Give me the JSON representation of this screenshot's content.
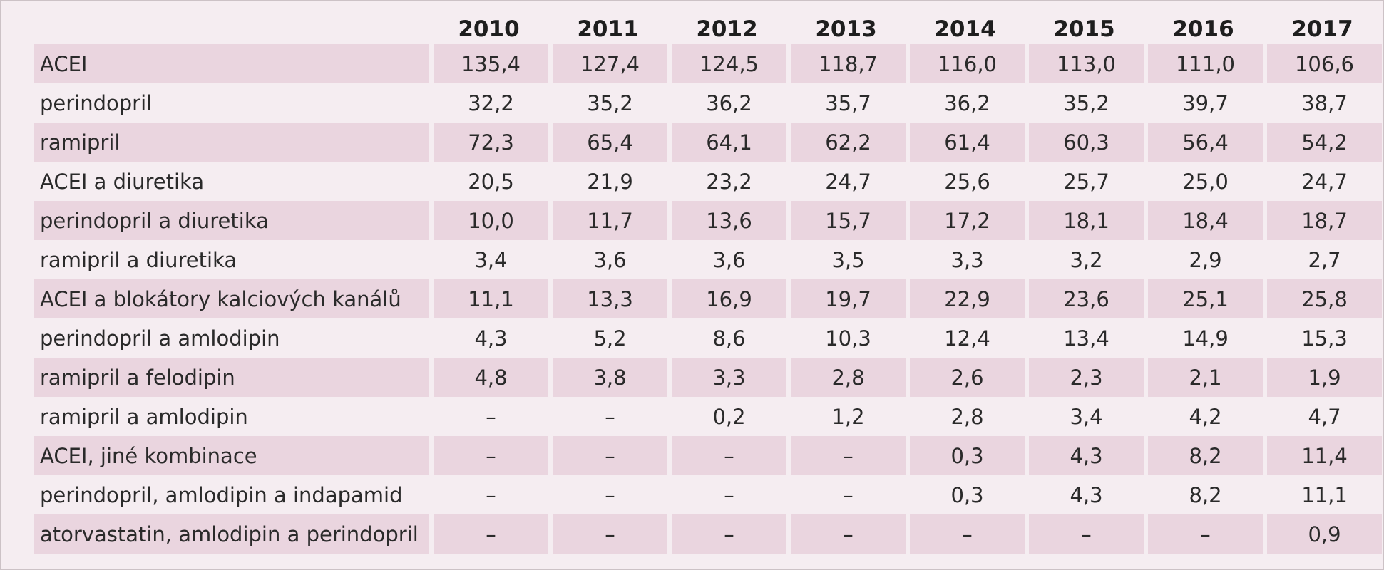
{
  "chart_data": {
    "type": "table",
    "columns": [
      "",
      "2010",
      "2011",
      "2012",
      "2013",
      "2014",
      "2015",
      "2016",
      "2017"
    ],
    "rows": [
      {
        "label": "ACEI",
        "values": [
          "135,4",
          "127,4",
          "124,5",
          "118,7",
          "116,0",
          "113,0",
          "111,0",
          "106,6"
        ]
      },
      {
        "label": "perindopril",
        "values": [
          "32,2",
          "35,2",
          "36,2",
          "35,7",
          "36,2",
          "35,2",
          "39,7",
          "38,7"
        ]
      },
      {
        "label": "ramipril",
        "values": [
          "72,3",
          "65,4",
          "64,1",
          "62,2",
          "61,4",
          "60,3",
          "56,4",
          "54,2"
        ]
      },
      {
        "label": "ACEI a diuretika",
        "values": [
          "20,5",
          "21,9",
          "23,2",
          "24,7",
          "25,6",
          "25,7",
          "25,0",
          "24,7"
        ]
      },
      {
        "label": "perindopril a diuretika",
        "values": [
          "10,0",
          "11,7",
          "13,6",
          "15,7",
          "17,2",
          "18,1",
          "18,4",
          "18,7"
        ]
      },
      {
        "label": "ramipril a diuretika",
        "values": [
          "3,4",
          "3,6",
          "3,6",
          "3,5",
          "3,3",
          "3,2",
          "2,9",
          "2,7"
        ]
      },
      {
        "label": "ACEI a blokátory kalciových kanálů",
        "values": [
          "11,1",
          "13,3",
          "16,9",
          "19,7",
          "22,9",
          "23,6",
          "25,1",
          "25,8"
        ]
      },
      {
        "label": "perindopril a amlodipin",
        "values": [
          "4,3",
          "5,2",
          "8,6",
          "10,3",
          "12,4",
          "13,4",
          "14,9",
          "15,3"
        ]
      },
      {
        "label": "ramipril a felodipin",
        "values": [
          "4,8",
          "3,8",
          "3,3",
          "2,8",
          "2,6",
          "2,3",
          "2,1",
          "1,9"
        ]
      },
      {
        "label": "ramipril a amlodipin",
        "values": [
          "–",
          "–",
          "0,2",
          "1,2",
          "2,8",
          "3,4",
          "4,2",
          "4,7"
        ]
      },
      {
        "label": "ACEI, jiné kombinace",
        "values": [
          "–",
          "–",
          "–",
          "–",
          "0,3",
          "4,3",
          "8,2",
          "11,4"
        ]
      },
      {
        "label": "perindopril, amlodipin a indapamid",
        "values": [
          "–",
          "–",
          "–",
          "–",
          "0,3",
          "4,3",
          "8,2",
          "11,1"
        ]
      },
      {
        "label": "atorvastatin, amlodipin a perindopril",
        "values": [
          "–",
          "–",
          "–",
          "–",
          "–",
          "–",
          "–",
          "0,9"
        ]
      }
    ]
  },
  "colors": {
    "background": "#f5edf1",
    "stripe": "#ead5df",
    "text": "#2a2a2a",
    "border": "#ccc2c6"
  }
}
